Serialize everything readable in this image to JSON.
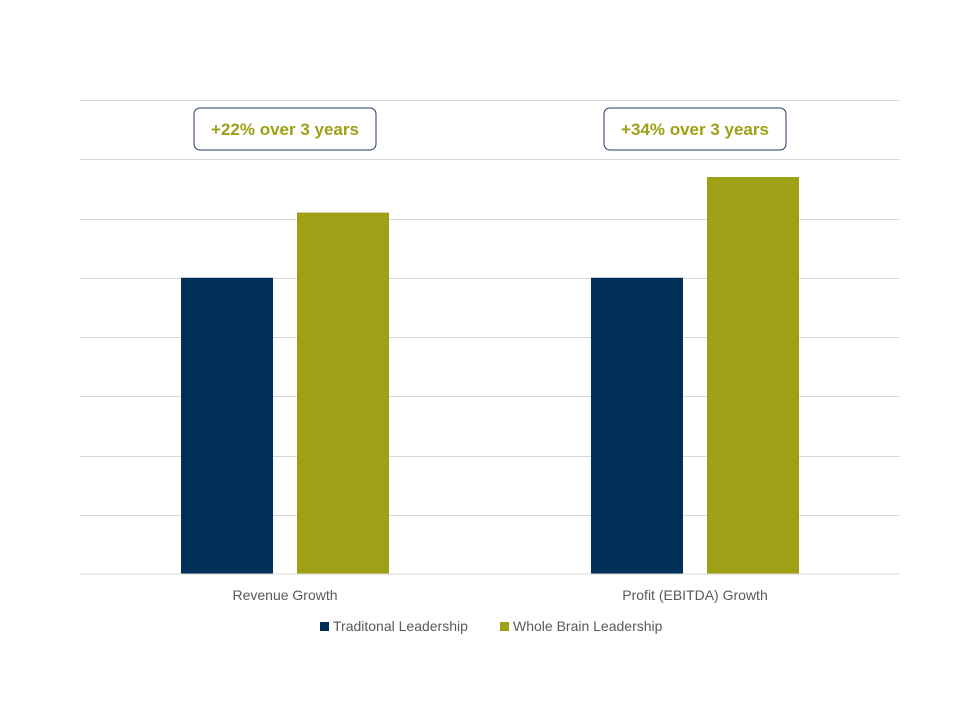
{
  "chart_data": {
    "type": "bar",
    "title": "",
    "xlabel": "",
    "ylabel": "",
    "categories": [
      "Revenue Growth",
      "Profit (EBITDA) Growth"
    ],
    "series": [
      {
        "name": "Traditonal Leadership",
        "color": "#003057",
        "values": [
          100,
          100
        ]
      },
      {
        "name": "Whole Brain Leadership",
        "color": "#9ea015",
        "values": [
          122,
          134
        ]
      }
    ],
    "ylim": [
      0,
      160
    ],
    "grid": true,
    "y_tick_labels_shown": false,
    "legend": "bottom",
    "annotations": [
      {
        "category": "Revenue Growth",
        "text": "+22% over 3 years"
      },
      {
        "category": "Profit (EBITDA) Growth",
        "text": "+34% over 3 years"
      }
    ],
    "annotation_style": {
      "text_color": "#9ea015",
      "border_color": "#1f3864"
    }
  }
}
